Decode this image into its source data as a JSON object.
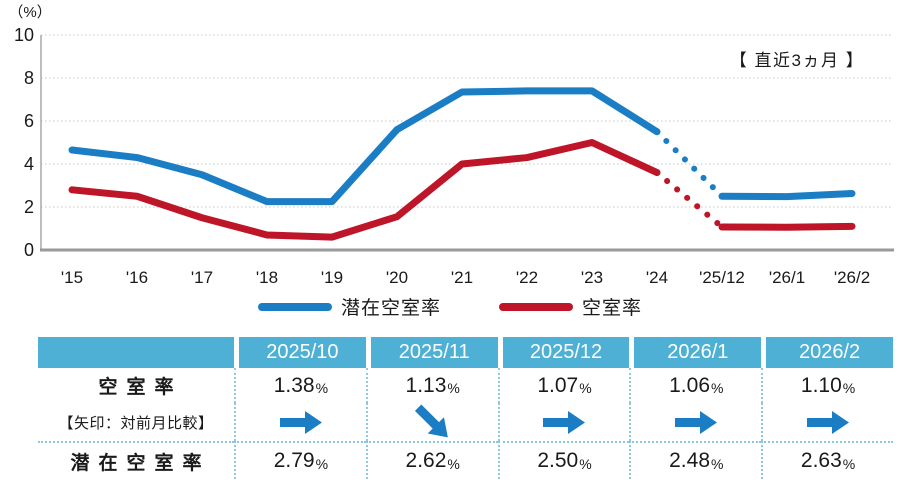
{
  "chart_data": {
    "type": "line",
    "title": "",
    "y_unit": "（%）",
    "annotation": "【 直近3ヵ月 】",
    "ylim": [
      0,
      10
    ],
    "yticks": [
      0,
      2,
      4,
      6,
      8,
      10
    ],
    "grid": "horizontal-dotted",
    "legend_position": "bottom",
    "x": [
      "'15",
      "'16",
      "'17",
      "'18",
      "'19",
      "'20",
      "'21",
      "'22",
      "'23",
      "'24",
      "'25/12",
      "'26/1",
      "'26/2"
    ],
    "series": [
      {
        "name": "潜在空室率",
        "color": "#1b7ec4",
        "values": [
          4.65,
          4.3,
          3.5,
          2.25,
          2.25,
          5.6,
          7.35,
          7.4,
          7.4,
          5.5,
          2.5,
          2.48,
          2.63
        ],
        "dashed_between": [
          9,
          10
        ],
        "dashed_note": "dotted projection segment between '24 and '25/12"
      },
      {
        "name": "空室率",
        "color": "#be1528",
        "values": [
          2.8,
          2.5,
          1.5,
          0.7,
          0.6,
          1.55,
          4.0,
          4.3,
          5.0,
          3.6,
          1.07,
          1.06,
          1.1
        ],
        "dashed_between": [
          9,
          10
        ],
        "dashed_note": "dotted projection segment between '24 and '25/12"
      }
    ]
  },
  "table": {
    "columns": [
      "2025/10",
      "2025/11",
      "2025/12",
      "2026/1",
      "2026/2"
    ],
    "percent_sign": "%",
    "vacancy": {
      "label": "空室率",
      "values": [
        "1.38",
        "1.13",
        "1.07",
        "1.06",
        "1.10"
      ]
    },
    "arrow_row": {
      "label": "【矢印：対前月比較】",
      "directions": [
        "right",
        "down-right",
        "right",
        "right",
        "right"
      ]
    },
    "potential": {
      "label": "潜在空室率",
      "values": [
        "2.79",
        "2.62",
        "2.50",
        "2.48",
        "2.63"
      ]
    }
  }
}
